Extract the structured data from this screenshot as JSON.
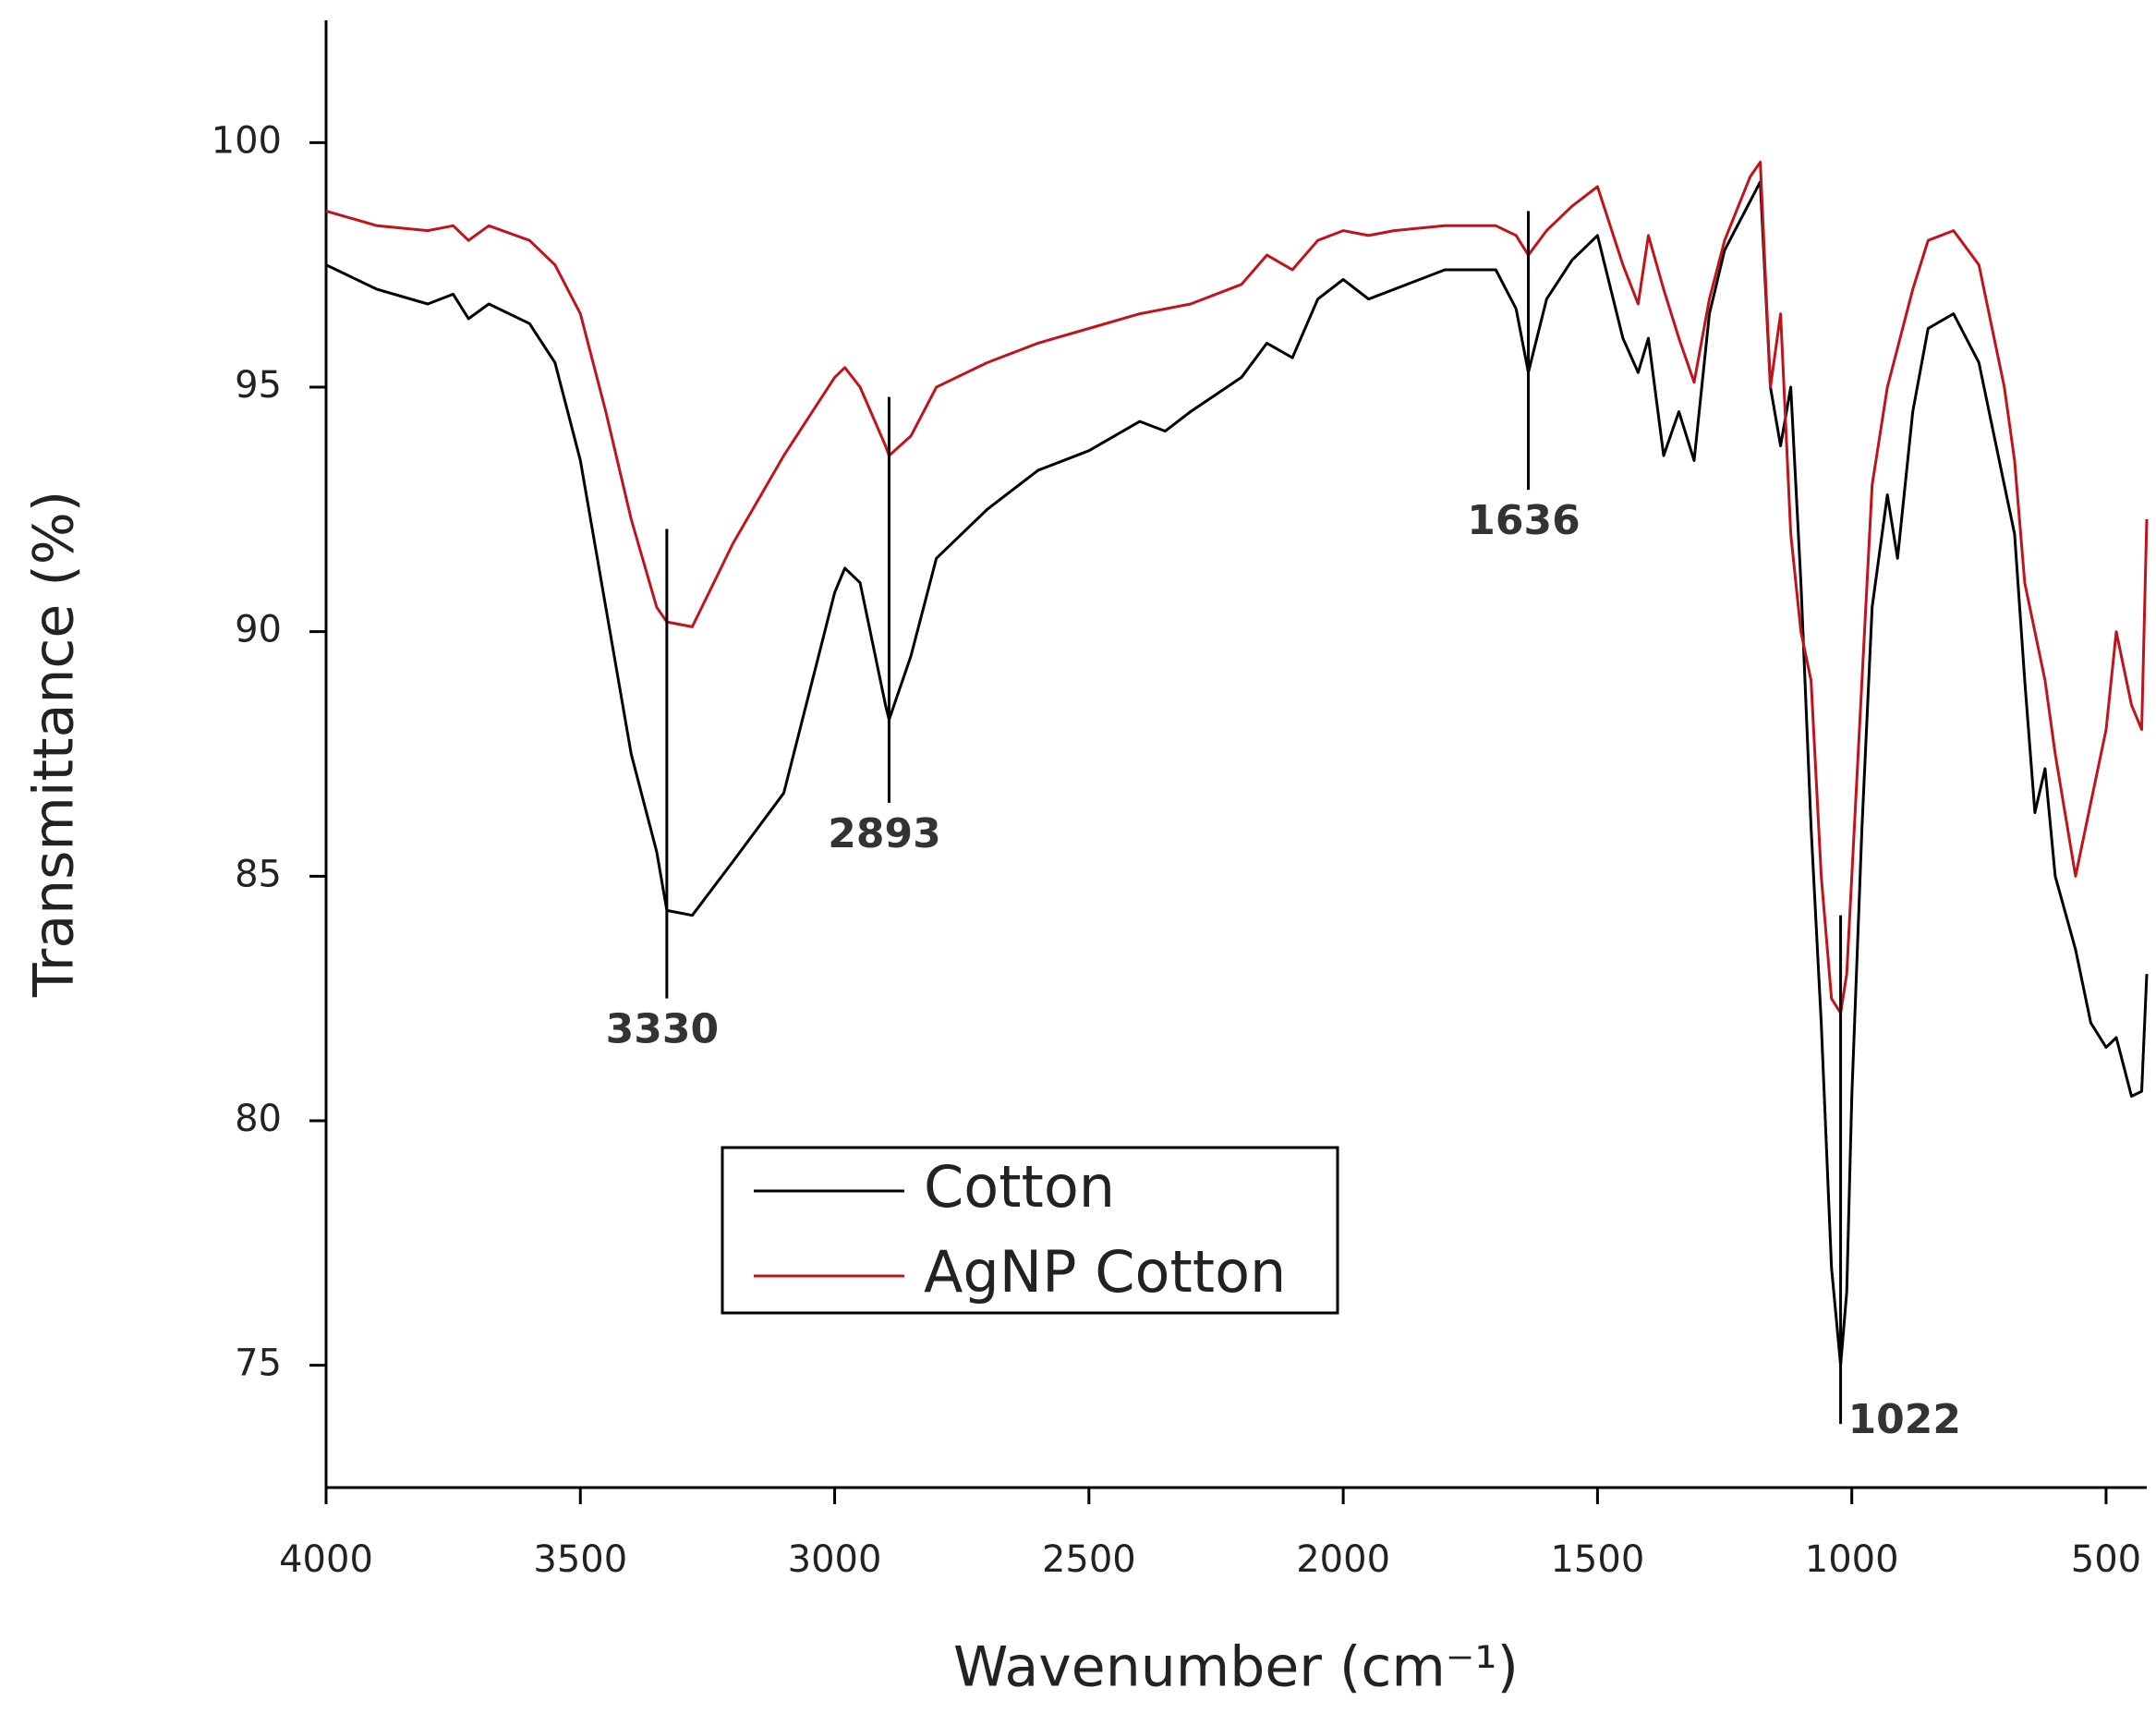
{
  "chart_data": {
    "type": "line",
    "x_label": "Wavenumber (cm⁻¹)",
    "y_label": "Transmittance (%)",
    "xlim": [
      4000,
      420
    ],
    "ylim": [
      72.5,
      102.5
    ],
    "xticks": [
      4000,
      3500,
      3000,
      2500,
      2000,
      1500,
      1000,
      500
    ],
    "yticks": [
      75,
      80,
      85,
      90,
      95,
      100
    ],
    "grid": false,
    "legend_position": "lower center",
    "x": [
      4000,
      3900,
      3800,
      3750,
      3720,
      3680,
      3600,
      3550,
      3500,
      3450,
      3400,
      3350,
      3330,
      3280,
      3200,
      3100,
      3000,
      2980,
      2950,
      2900,
      2893,
      2850,
      2800,
      2700,
      2600,
      2500,
      2400,
      2350,
      2300,
      2200,
      2150,
      2100,
      2050,
      2000,
      1950,
      1900,
      1800,
      1700,
      1660,
      1636,
      1600,
      1550,
      1500,
      1450,
      1420,
      1400,
      1370,
      1340,
      1310,
      1280,
      1250,
      1200,
      1180,
      1160,
      1140,
      1120,
      1100,
      1080,
      1060,
      1040,
      1022,
      1010,
      1000,
      980,
      960,
      930,
      910,
      880,
      850,
      800,
      750,
      700,
      680,
      660,
      640,
      620,
      600,
      560,
      530,
      500,
      480,
      450,
      430,
      420
    ],
    "series": [
      {
        "name": "Cotton",
        "color": "#000000",
        "values": [
          97.5,
          97.0,
          96.7,
          96.9,
          96.4,
          96.7,
          96.3,
          95.5,
          93.5,
          90.5,
          87.5,
          85.5,
          84.3,
          84.2,
          85.3,
          86.7,
          90.8,
          91.3,
          91.0,
          88.5,
          88.2,
          89.5,
          91.5,
          92.5,
          93.3,
          93.7,
          94.3,
          94.1,
          94.5,
          95.2,
          95.9,
          95.6,
          96.8,
          97.2,
          96.8,
          97.0,
          97.4,
          97.4,
          96.6,
          95.3,
          96.8,
          97.6,
          98.1,
          96.0,
          95.3,
          96.0,
          93.6,
          94.5,
          93.5,
          96.5,
          97.8,
          98.8,
          99.2,
          95.0,
          93.8,
          95.0,
          91.0,
          86.0,
          82.0,
          77.0,
          75.0,
          76.5,
          80.5,
          86.0,
          90.5,
          92.8,
          91.5,
          94.5,
          96.2,
          96.5,
          95.5,
          93.0,
          92.0,
          89.0,
          86.3,
          87.2,
          85.0,
          83.5,
          82.0,
          81.5,
          81.7,
          80.5,
          80.6,
          83.0
        ]
      },
      {
        "name": "AgNP Cotton",
        "color": "#c0141c",
        "values": [
          98.6,
          98.3,
          98.2,
          98.3,
          98.0,
          98.3,
          98.0,
          97.5,
          96.5,
          94.5,
          92.3,
          90.5,
          90.2,
          90.1,
          91.8,
          93.6,
          95.2,
          95.4,
          95.0,
          93.8,
          93.6,
          94.0,
          95.0,
          95.5,
          95.9,
          96.2,
          96.5,
          96.6,
          96.7,
          97.1,
          97.7,
          97.4,
          98.0,
          98.2,
          98.1,
          98.2,
          98.3,
          98.3,
          98.1,
          97.7,
          98.2,
          98.7,
          99.1,
          97.5,
          96.7,
          98.1,
          97.0,
          96.0,
          95.1,
          96.8,
          98.0,
          99.3,
          99.6,
          95.0,
          96.5,
          92.0,
          90.0,
          89.0,
          85.0,
          82.5,
          82.2,
          83.0,
          85.0,
          89.0,
          93.0,
          95.0,
          95.8,
          97.0,
          98.0,
          98.2,
          97.5,
          95.0,
          93.5,
          91.0,
          90.0,
          89.0,
          87.5,
          85.0,
          86.5,
          88.0,
          90.0,
          88.5,
          88.0,
          92.3
        ]
      }
    ],
    "annotations": [
      {
        "text": "3330",
        "x": 3330,
        "y1": 92.1,
        "y2": 82.5
      },
      {
        "text": "2893",
        "x": 2893,
        "y1": 94.8,
        "y2": 86.5
      },
      {
        "text": "1636",
        "x": 1636,
        "y1": 98.6,
        "y2": 92.9
      },
      {
        "text": "1022",
        "x": 1022,
        "y1": 84.2,
        "y2": 73.8
      }
    ]
  }
}
